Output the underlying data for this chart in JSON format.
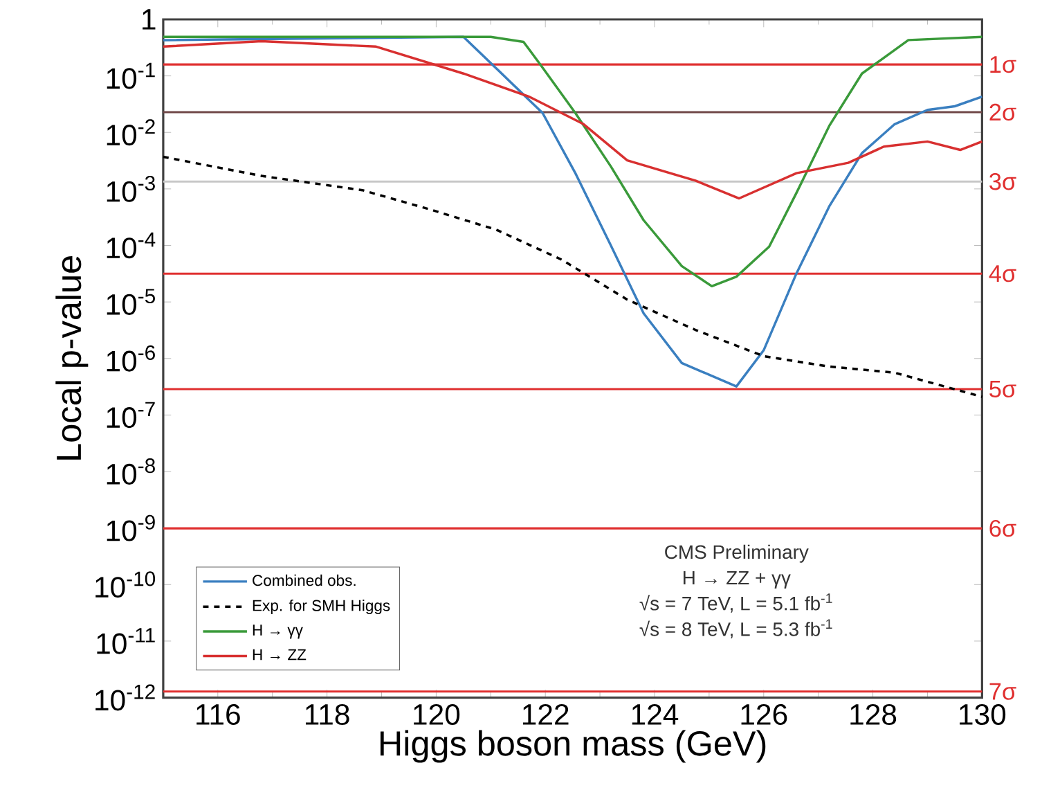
{
  "chart_data": {
    "type": "line",
    "xlabel": "Higgs boson mass (GeV)",
    "ylabel": "Local p-value",
    "log": "y",
    "xlim": [
      115,
      130
    ],
    "xticks": [
      116,
      118,
      120,
      122,
      124,
      126,
      128,
      130
    ],
    "ylim": [
      1e-12,
      1
    ],
    "yticks": [
      1,
      {
        "value": 0.1,
        "label": "10$^{-1}$"
      },
      {
        "value": 0.01,
        "label": "10$^{-2}$"
      },
      {
        "value": 0.001,
        "label": "10$^{-3}$"
      },
      {
        "value": 0.0001,
        "label": "10$^{-4}$"
      },
      {
        "value": 1e-05,
        "label": "10$^{-5}$"
      },
      {
        "value": 1e-06,
        "label": "10$^{-6}$"
      },
      {
        "value": 1e-07,
        "label": "10$^{-7}$"
      },
      {
        "value": 1e-08,
        "label": "10$^{-8}$"
      },
      {
        "value": 1e-09,
        "label": "10$^{-9}$"
      },
      {
        "value": 1e-10,
        "label": "10$^{-10}$"
      },
      {
        "value": 1e-11,
        "label": "10$^{-11}$"
      },
      {
        "value": 1e-12,
        "label": "10$^{-12}$"
      }
    ],
    "legend": "bottom left",
    "grid": false,
    "marker": "none",
    "series": [
      {
        "name": "Combined obs.",
        "color": "#3a7fc0",
        "line_style": "solid",
        "x": [
          115,
          120.5,
          121.2,
          121.95,
          122.55,
          123.2,
          123.8,
          124.5,
          125.5,
          126,
          126.6,
          127.2,
          127.8,
          128.4,
          129,
          129.5,
          130
        ],
        "values": [
          0.43,
          0.49,
          0.11,
          0.022,
          0.0019,
          0.0001,
          6.3e-06,
          8.3e-07,
          3.2e-07,
          1.4e-06,
          3.2e-05,
          0.00049,
          0.0043,
          0.014,
          0.025,
          0.029,
          0.043
        ]
      },
      {
        "name": "Exp. for SMH Higgs",
        "color": "#000000",
        "line_style": "dashed",
        "x": [
          115,
          116.8,
          118.65,
          119.9,
          121.1,
          122.3,
          123.5,
          124.75,
          126,
          127.2,
          128.4,
          130
        ],
        "values": [
          0.0037,
          0.0017,
          0.00095,
          0.00043,
          0.00019,
          5.6e-05,
          1.1e-05,
          3.2e-06,
          1.1e-06,
          7.2e-07,
          5.6e-07,
          2.1e-07
        ]
      },
      {
        "name": "H → γγ",
        "color": "#3a9a3a",
        "line_style": "solid",
        "x": [
          115,
          121,
          121.6,
          121.95,
          122.55,
          123.2,
          123.8,
          124.5,
          125.05,
          125.5,
          126.1,
          126.6,
          127.2,
          127.8,
          128.65,
          130
        ],
        "values": [
          0.49,
          0.49,
          0.4,
          0.14,
          0.022,
          0.0025,
          0.00028,
          4.3e-05,
          1.9e-05,
          2.8e-05,
          9.5e-05,
          0.00085,
          0.013,
          0.11,
          0.43,
          0.49
        ]
      },
      {
        "name": "H → ZZ",
        "color": "#d83030",
        "line_style": "solid",
        "x": [
          115,
          116.8,
          118.9,
          120.5,
          121.7,
          122.7,
          123.5,
          124.75,
          125.55,
          126.6,
          127.55,
          128.2,
          129,
          129.6,
          130
        ],
        "values": [
          0.33,
          0.41,
          0.33,
          0.11,
          0.043,
          0.014,
          0.0032,
          0.0014,
          0.00068,
          0.0019,
          0.0029,
          0.0056,
          0.0069,
          0.0049,
          0.0069
        ]
      }
    ],
    "ref_lines": [
      {
        "axis": "y",
        "value": 0.159,
        "label": "1σ",
        "color": "#e03030"
      },
      {
        "axis": "y",
        "value": 0.0228,
        "label": "2σ",
        "color": "#704848"
      },
      {
        "axis": "y",
        "value": 0.00135,
        "label": "3σ",
        "color": "#c8c8c8"
      },
      {
        "axis": "y",
        "value": 3.17e-05,
        "label": "4σ",
        "color": "#e03030"
      },
      {
        "axis": "y",
        "value": 2.87e-07,
        "label": "5σ",
        "color": "#e03030"
      },
      {
        "axis": "y",
        "value": 9.87e-10,
        "label": "6σ",
        "color": "#e03030"
      },
      {
        "axis": "y",
        "value": 1.28e-12,
        "label": "7σ",
        "color": "#e03030"
      }
    ],
    "annotations": [
      "CMS Preliminary",
      "H → ZZ + γγ",
      "√s = 7 TeV, L = 5.1 fb$^{-1}$",
      "√s = 8 TeV, L = 5.3 fb$^{-1}$"
    ]
  }
}
